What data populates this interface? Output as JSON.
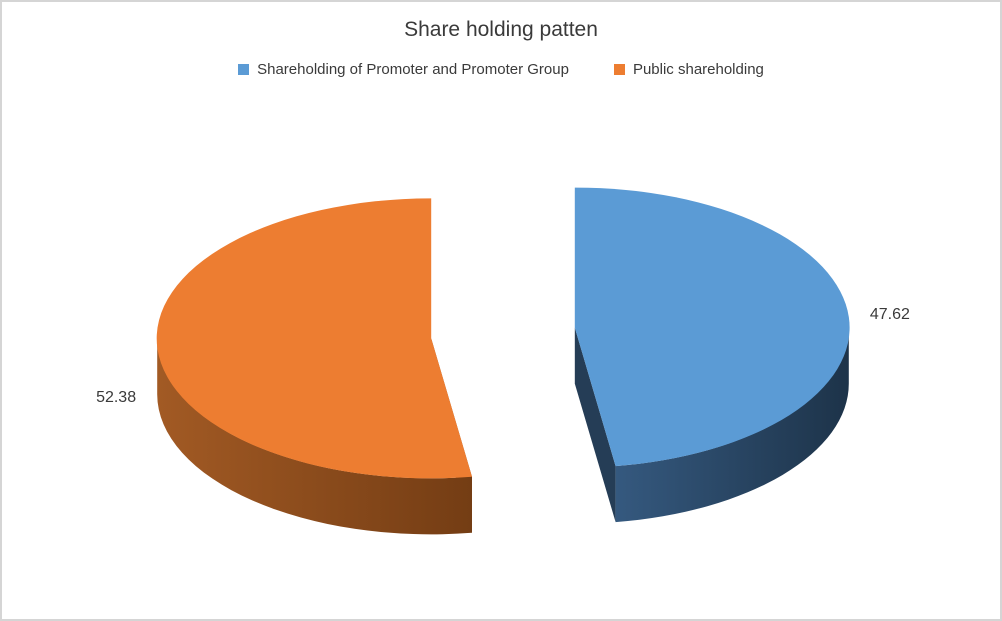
{
  "frame": {
    "background": "#FFFFFF",
    "border_color": "#D5D5D5"
  },
  "chart_data": {
    "type": "pie",
    "style": "3d-exploded",
    "title": "Share holding patten",
    "legend_position": "top",
    "data_labels_shown": true,
    "text_color": "#3A3A3A",
    "series": [
      {
        "name": "Shareholding of Promoter and Promoter Group",
        "value": 47.62,
        "label": "47.62",
        "color": "#5B9BD5",
        "side_light": "#35597F",
        "side_dark": "#1D3349",
        "cut_color": "#253D56"
      },
      {
        "name": "Public shareholding",
        "value": 52.38,
        "label": "52.38",
        "color": "#ED7D31",
        "side_light": "#A25A24",
        "side_dark": "#743D14",
        "cut_color": "#8C4A1C"
      }
    ]
  }
}
